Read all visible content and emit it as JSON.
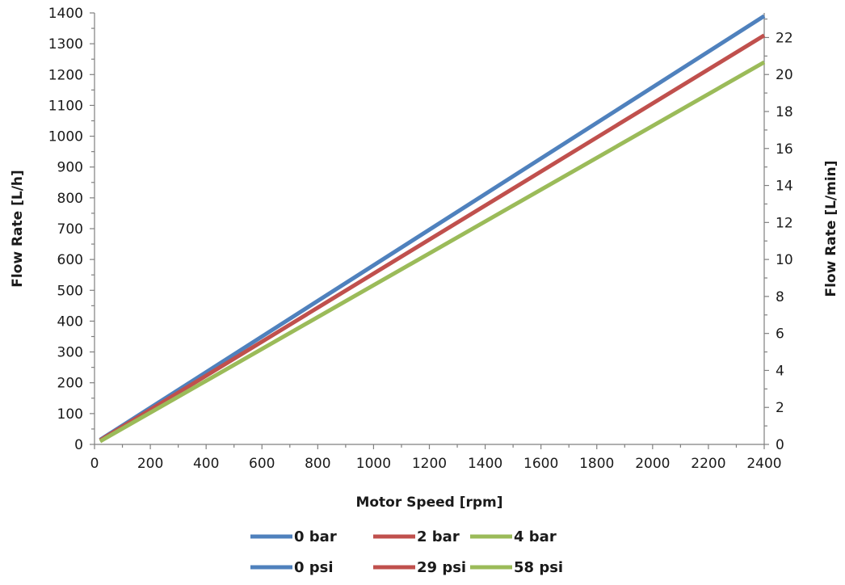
{
  "chart_data": {
    "type": "line",
    "xlabel": "Motor Speed [rpm]",
    "ylabel": "Flow Rate [L/h]",
    "y2label": "Flow Rate [L/min]",
    "xlim": [
      0,
      2400
    ],
    "ylim": [
      0,
      1400
    ],
    "y2lim": [
      0,
      23.33
    ],
    "x_ticks": [
      0,
      200,
      400,
      600,
      800,
      1000,
      1200,
      1400,
      1600,
      1800,
      2000,
      2200,
      2400
    ],
    "y_ticks": [
      0,
      100,
      200,
      300,
      400,
      500,
      600,
      700,
      800,
      900,
      1000,
      1100,
      1200,
      1300,
      1400
    ],
    "y2_ticks": [
      0,
      2,
      4,
      6,
      8,
      10,
      12,
      14,
      16,
      18,
      20,
      22
    ],
    "grid": false,
    "legend_position": "bottom",
    "series": [
      {
        "name": "0 bar",
        "name_alt": "0 psi",
        "color": "#4f81bd",
        "x": [
          20,
          2400
        ],
        "y": [
          15,
          1390
        ]
      },
      {
        "name": "2 bar",
        "name_alt": "29 psi",
        "color": "#c0504d",
        "x": [
          20,
          2400
        ],
        "y": [
          13,
          1327
        ]
      },
      {
        "name": "4 bar",
        "name_alt": "58 psi",
        "color": "#9bbb59",
        "x": [
          20,
          2400
        ],
        "y": [
          10,
          1240
        ]
      }
    ]
  }
}
